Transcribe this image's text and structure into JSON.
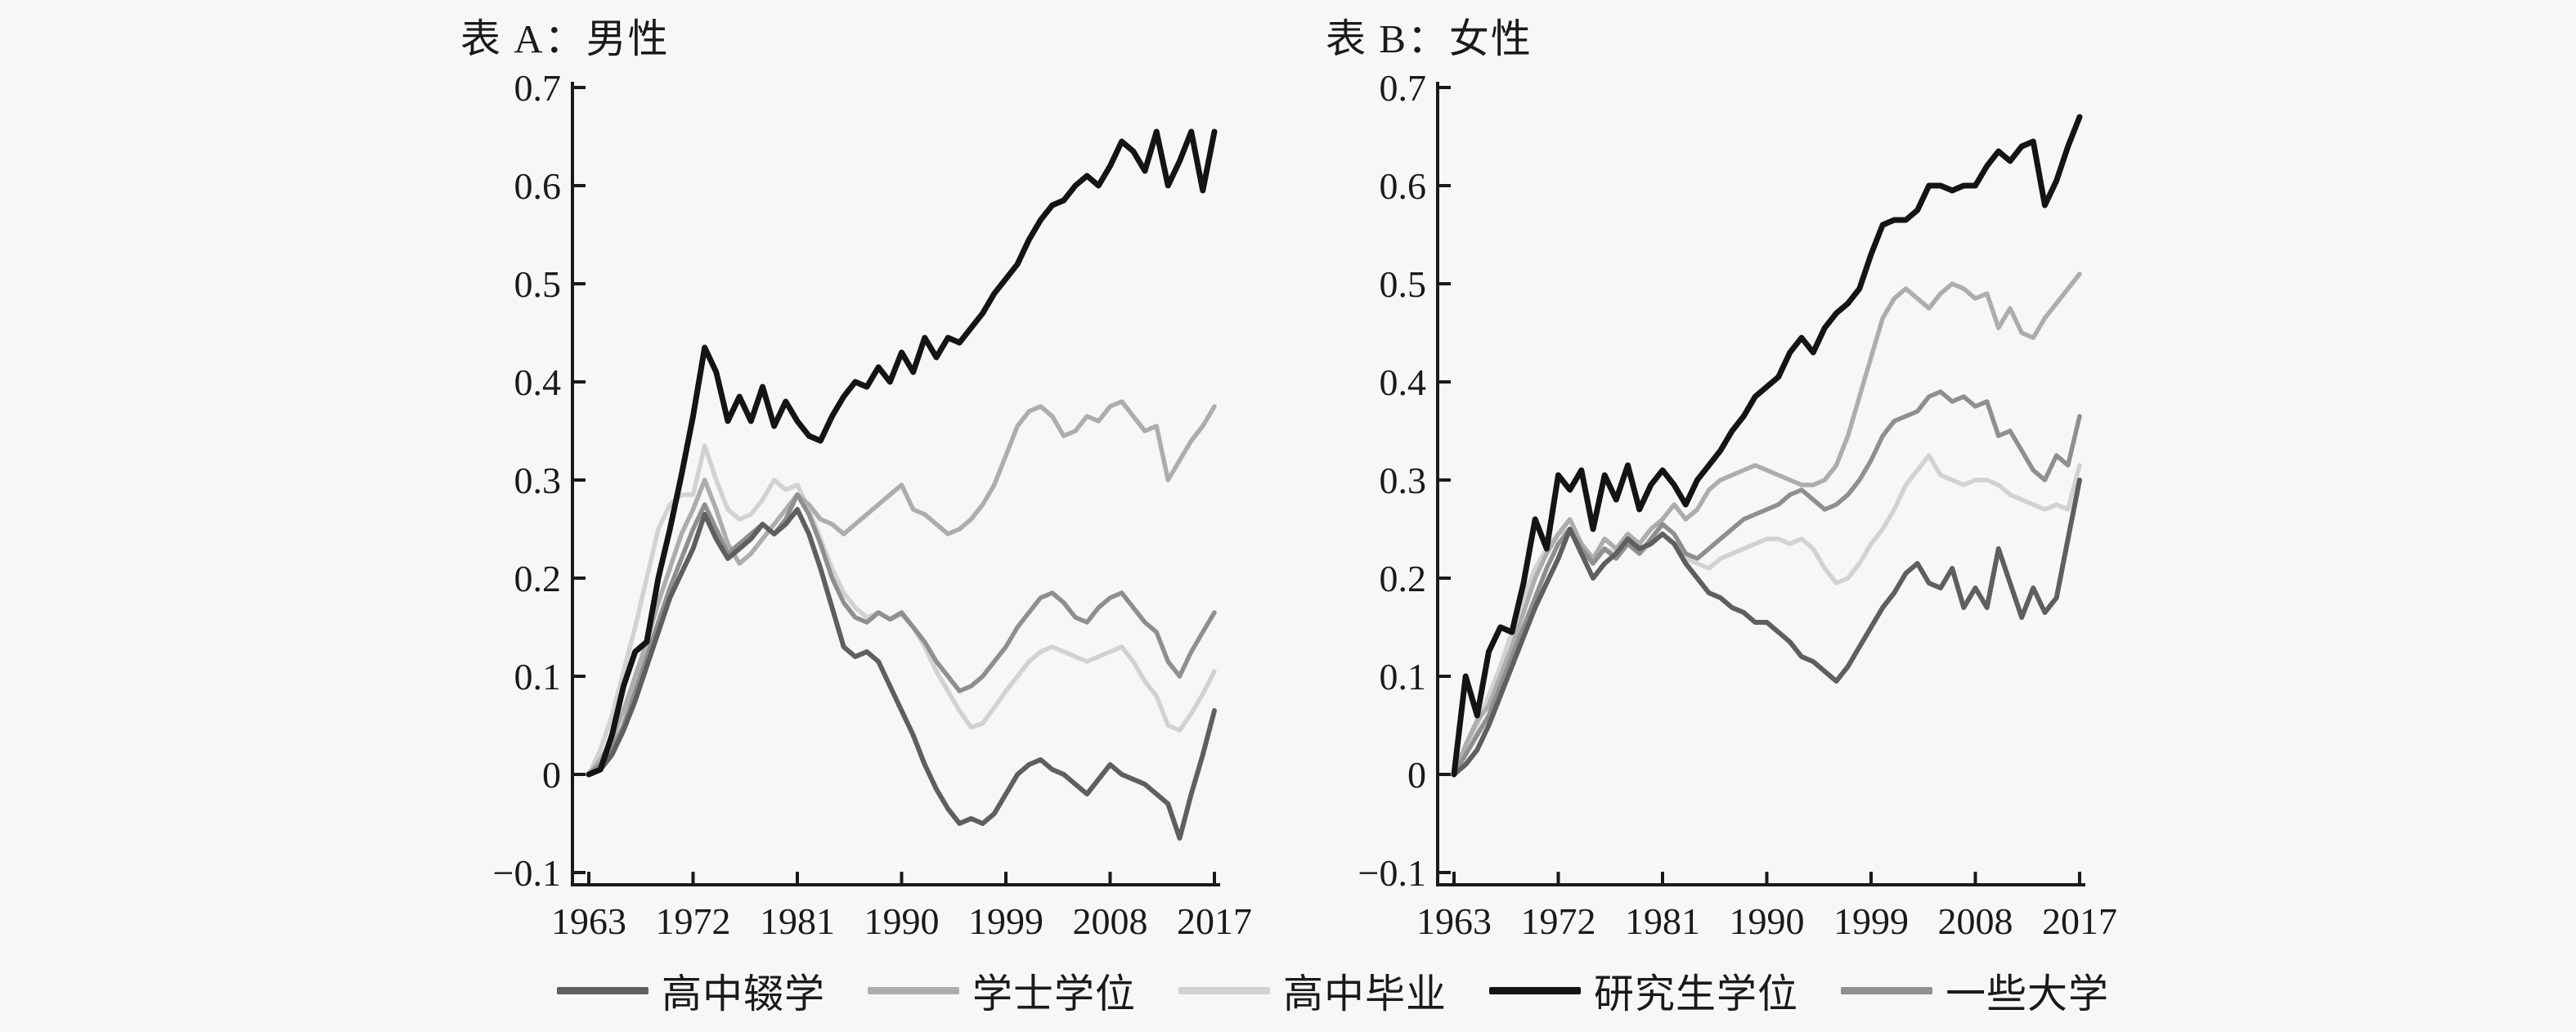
{
  "panelA": {
    "title": "表 A：男性"
  },
  "panelB": {
    "title": "表 B：女性"
  },
  "axes": {
    "ytick_labels": [
      "0.7",
      "0.6",
      "0.5",
      "0.4",
      "0.3",
      "0.2",
      "0.1",
      "0",
      "−0.1"
    ],
    "ytick_values": [
      0.7,
      0.6,
      0.5,
      0.4,
      0.3,
      0.2,
      0.1,
      0.0,
      -0.1
    ],
    "xtick_labels": [
      "1963",
      "1972",
      "1981",
      "1990",
      "1999",
      "2008",
      "2017"
    ],
    "xtick_values": [
      1963,
      1972,
      1981,
      1990,
      1999,
      2008,
      2017
    ],
    "ylim": [
      -0.1125,
      0.7058
    ],
    "xlim": [
      1961.6,
      2017.6
    ],
    "grid": false
  },
  "colors": {
    "graduate": "#141414",
    "dropout": "#5f5f5f",
    "some_college": "#8f8f8f",
    "bachelor": "#adadad",
    "hs_grad": "#d2d2d2",
    "background": "#f7f7f7",
    "text": "#1a1a1a"
  },
  "legend": {
    "items": [
      {
        "key": "dropout",
        "label": "高中辍学",
        "color": "#5f5f5f"
      },
      {
        "key": "bachelor",
        "label": "学士学位",
        "color": "#adadad"
      },
      {
        "key": "hs_grad",
        "label": "高中毕业",
        "color": "#d2d2d2"
      },
      {
        "key": "graduate",
        "label": "研究生学位",
        "color": "#141414"
      },
      {
        "key": "some_college",
        "label": "一些大学",
        "color": "#8f8f8f"
      }
    ]
  },
  "chart_data": [
    {
      "panel": "A",
      "type": "line",
      "title": "表 A：男性",
      "x_start": 1963,
      "x_end": 2017,
      "series": [
        {
          "key": "hs_grad",
          "name": "高中毕业",
          "color": "#d2d2d2",
          "width": 5.5,
          "values": [
            0,
            0.025,
            0.06,
            0.105,
            0.15,
            0.2,
            0.25,
            0.275,
            0.285,
            0.285,
            0.335,
            0.3,
            0.27,
            0.26,
            0.265,
            0.28,
            0.3,
            0.29,
            0.295,
            0.27,
            0.24,
            0.21,
            0.185,
            0.17,
            0.16,
            0.165,
            0.158,
            0.163,
            0.15,
            0.13,
            0.105,
            0.085,
            0.065,
            0.048,
            0.052,
            0.068,
            0.085,
            0.1,
            0.115,
            0.125,
            0.13,
            0.125,
            0.12,
            0.115,
            0.12,
            0.125,
            0.13,
            0.115,
            0.095,
            0.08,
            0.05,
            0.045,
            0.062,
            0.082,
            0.105
          ]
        },
        {
          "key": "bachelor",
          "name": "学士学位",
          "color": "#adadad",
          "width": 5.5,
          "values": [
            0,
            0.015,
            0.035,
            0.065,
            0.1,
            0.135,
            0.175,
            0.21,
            0.245,
            0.27,
            0.3,
            0.27,
            0.235,
            0.215,
            0.225,
            0.24,
            0.255,
            0.27,
            0.285,
            0.275,
            0.26,
            0.255,
            0.245,
            0.255,
            0.265,
            0.275,
            0.285,
            0.295,
            0.27,
            0.265,
            0.255,
            0.245,
            0.25,
            0.26,
            0.275,
            0.295,
            0.325,
            0.355,
            0.37,
            0.375,
            0.365,
            0.345,
            0.35,
            0.365,
            0.36,
            0.375,
            0.38,
            0.365,
            0.35,
            0.355,
            0.3,
            0.32,
            0.34,
            0.355,
            0.375
          ]
        },
        {
          "key": "some_college",
          "name": "一些大学",
          "color": "#8f8f8f",
          "width": 5.5,
          "values": [
            0,
            0.01,
            0.025,
            0.05,
            0.085,
            0.12,
            0.155,
            0.19,
            0.22,
            0.25,
            0.275,
            0.25,
            0.225,
            0.235,
            0.245,
            0.255,
            0.245,
            0.26,
            0.285,
            0.265,
            0.235,
            0.2,
            0.175,
            0.16,
            0.155,
            0.165,
            0.158,
            0.165,
            0.15,
            0.135,
            0.115,
            0.1,
            0.085,
            0.09,
            0.1,
            0.115,
            0.13,
            0.15,
            0.165,
            0.18,
            0.185,
            0.175,
            0.16,
            0.155,
            0.17,
            0.18,
            0.185,
            0.17,
            0.155,
            0.145,
            0.115,
            0.1,
            0.125,
            0.145,
            0.165
          ]
        },
        {
          "key": "dropout",
          "name": "高中辍学",
          "color": "#5f5f5f",
          "width": 6,
          "values": [
            0,
            0.005,
            0.02,
            0.045,
            0.075,
            0.11,
            0.145,
            0.18,
            0.205,
            0.23,
            0.265,
            0.24,
            0.22,
            0.23,
            0.24,
            0.255,
            0.245,
            0.255,
            0.27,
            0.245,
            0.21,
            0.17,
            0.13,
            0.12,
            0.125,
            0.115,
            0.09,
            0.065,
            0.04,
            0.01,
            -0.015,
            -0.035,
            -0.05,
            -0.045,
            -0.05,
            -0.04,
            -0.02,
            0.0,
            0.01,
            0.015,
            0.005,
            0.0,
            -0.01,
            -0.02,
            -0.005,
            0.01,
            0.0,
            -0.005,
            -0.01,
            -0.02,
            -0.03,
            -0.065,
            -0.02,
            0.02,
            0.065
          ]
        },
        {
          "key": "graduate",
          "name": "研究生学位",
          "color": "#141414",
          "width": 7,
          "values": [
            0,
            0.005,
            0.04,
            0.09,
            0.125,
            0.135,
            0.2,
            0.25,
            0.305,
            0.365,
            0.435,
            0.41,
            0.36,
            0.385,
            0.36,
            0.395,
            0.355,
            0.38,
            0.36,
            0.345,
            0.34,
            0.365,
            0.385,
            0.4,
            0.395,
            0.415,
            0.4,
            0.43,
            0.41,
            0.445,
            0.425,
            0.445,
            0.44,
            0.455,
            0.47,
            0.49,
            0.505,
            0.52,
            0.545,
            0.565,
            0.58,
            0.585,
            0.6,
            0.61,
            0.6,
            0.62,
            0.645,
            0.635,
            0.615,
            0.655,
            0.6,
            0.625,
            0.655,
            0.595,
            0.655
          ]
        }
      ]
    },
    {
      "panel": "B",
      "type": "line",
      "title": "表 B：女性",
      "x_start": 1963,
      "x_end": 2017,
      "series": [
        {
          "key": "hs_grad",
          "name": "高中毕业",
          "color": "#d2d2d2",
          "width": 5.5,
          "values": [
            0,
            0.025,
            0.05,
            0.08,
            0.11,
            0.145,
            0.18,
            0.21,
            0.23,
            0.245,
            0.25,
            0.23,
            0.215,
            0.23,
            0.225,
            0.235,
            0.225,
            0.235,
            0.245,
            0.235,
            0.22,
            0.215,
            0.21,
            0.22,
            0.225,
            0.23,
            0.235,
            0.24,
            0.24,
            0.235,
            0.24,
            0.23,
            0.21,
            0.195,
            0.2,
            0.215,
            0.235,
            0.25,
            0.27,
            0.295,
            0.31,
            0.325,
            0.305,
            0.3,
            0.295,
            0.3,
            0.3,
            0.295,
            0.285,
            0.28,
            0.275,
            0.27,
            0.275,
            0.27,
            0.315
          ]
        },
        {
          "key": "bachelor",
          "name": "学士学位",
          "color": "#adadad",
          "width": 5.5,
          "values": [
            0,
            0.03,
            0.055,
            0.07,
            0.1,
            0.13,
            0.165,
            0.2,
            0.225,
            0.245,
            0.26,
            0.235,
            0.22,
            0.24,
            0.23,
            0.245,
            0.235,
            0.25,
            0.26,
            0.275,
            0.26,
            0.27,
            0.29,
            0.3,
            0.305,
            0.31,
            0.315,
            0.31,
            0.305,
            0.3,
            0.295,
            0.295,
            0.3,
            0.315,
            0.345,
            0.385,
            0.425,
            0.465,
            0.485,
            0.495,
            0.485,
            0.475,
            0.49,
            0.5,
            0.495,
            0.485,
            0.49,
            0.455,
            0.475,
            0.45,
            0.445,
            0.465,
            0.48,
            0.495,
            0.51
          ]
        },
        {
          "key": "some_college",
          "name": "一些大学",
          "color": "#8f8f8f",
          "width": 5.5,
          "values": [
            0,
            0.02,
            0.04,
            0.06,
            0.09,
            0.12,
            0.15,
            0.18,
            0.21,
            0.235,
            0.25,
            0.23,
            0.215,
            0.23,
            0.22,
            0.235,
            0.225,
            0.24,
            0.255,
            0.245,
            0.225,
            0.22,
            0.23,
            0.24,
            0.25,
            0.26,
            0.265,
            0.27,
            0.275,
            0.285,
            0.29,
            0.28,
            0.27,
            0.275,
            0.285,
            0.3,
            0.32,
            0.345,
            0.36,
            0.365,
            0.37,
            0.385,
            0.39,
            0.38,
            0.385,
            0.375,
            0.38,
            0.345,
            0.35,
            0.33,
            0.31,
            0.3,
            0.325,
            0.315,
            0.365
          ]
        },
        {
          "key": "dropout",
          "name": "高中辍学",
          "color": "#5f5f5f",
          "width": 6,
          "values": [
            0,
            0.01,
            0.025,
            0.05,
            0.08,
            0.11,
            0.14,
            0.17,
            0.195,
            0.22,
            0.25,
            0.225,
            0.2,
            0.215,
            0.225,
            0.24,
            0.23,
            0.235,
            0.245,
            0.235,
            0.215,
            0.2,
            0.185,
            0.18,
            0.17,
            0.165,
            0.155,
            0.155,
            0.145,
            0.135,
            0.12,
            0.115,
            0.105,
            0.095,
            0.11,
            0.13,
            0.15,
            0.17,
            0.185,
            0.205,
            0.215,
            0.195,
            0.19,
            0.21,
            0.17,
            0.19,
            0.17,
            0.23,
            0.195,
            0.16,
            0.19,
            0.165,
            0.18,
            0.24,
            0.3
          ]
        },
        {
          "key": "graduate",
          "name": "研究生学位",
          "color": "#141414",
          "width": 7,
          "values": [
            0,
            0.1,
            0.06,
            0.125,
            0.15,
            0.145,
            0.195,
            0.26,
            0.23,
            0.305,
            0.29,
            0.31,
            0.25,
            0.305,
            0.28,
            0.315,
            0.27,
            0.295,
            0.31,
            0.295,
            0.275,
            0.3,
            0.315,
            0.33,
            0.35,
            0.365,
            0.385,
            0.395,
            0.405,
            0.43,
            0.445,
            0.43,
            0.455,
            0.47,
            0.48,
            0.495,
            0.53,
            0.56,
            0.565,
            0.565,
            0.575,
            0.6,
            0.6,
            0.595,
            0.6,
            0.6,
            0.62,
            0.635,
            0.625,
            0.64,
            0.645,
            0.58,
            0.605,
            0.64,
            0.67
          ]
        }
      ]
    }
  ]
}
